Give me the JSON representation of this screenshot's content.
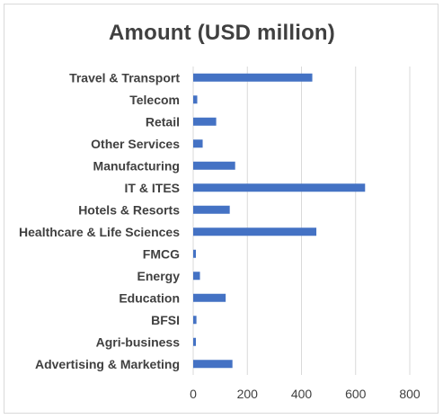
{
  "chart_data": {
    "type": "bar",
    "orientation": "horizontal",
    "title": "Amount (USD million)",
    "xlabel": "",
    "ylabel": "",
    "categories": [
      "Travel & Transport",
      "Telecom",
      "Retail",
      "Other Services",
      "Manufacturing",
      "IT & ITES",
      "Hotels & Resorts",
      "Healthcare & Life Sciences",
      "FMCG",
      "Energy",
      "Education",
      "BFSI",
      "Agri-business",
      "Advertising & Marketing"
    ],
    "values": [
      440,
      15,
      85,
      35,
      155,
      635,
      135,
      455,
      10,
      25,
      120,
      12,
      10,
      145
    ],
    "xlim": [
      0,
      800
    ],
    "xticks": [
      0,
      200,
      400,
      600,
      800
    ],
    "grid": true,
    "bar_color": "#4472c4",
    "grid_color": "#d9d9d9"
  }
}
